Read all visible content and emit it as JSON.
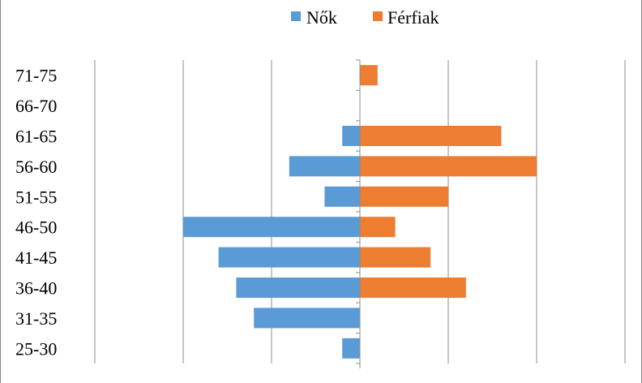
{
  "chart_data": {
    "type": "bar",
    "orientation": "horizontal",
    "layout": "population-pyramid",
    "title": "",
    "xlabel": "",
    "ylabel": "",
    "categories": [
      "25-30",
      "31-35",
      "36-40",
      "41-45",
      "46-50",
      "51-55",
      "56-60",
      "61-65",
      "66-70",
      "71-75"
    ],
    "series": [
      {
        "name": "Nők",
        "color": "#5b9bd5",
        "side": "left",
        "values": [
          1,
          6,
          7,
          8,
          10,
          2,
          4,
          1,
          0,
          0
        ]
      },
      {
        "name": "Férfiak",
        "color": "#ed7d31",
        "side": "right",
        "values": [
          0,
          0,
          6,
          4,
          2,
          5,
          10,
          8,
          0,
          1
        ]
      }
    ],
    "xlim": [
      -15,
      15
    ],
    "grid": true,
    "grid_step": 5,
    "tick_labels_shown": false,
    "legend_position": "top-center"
  }
}
